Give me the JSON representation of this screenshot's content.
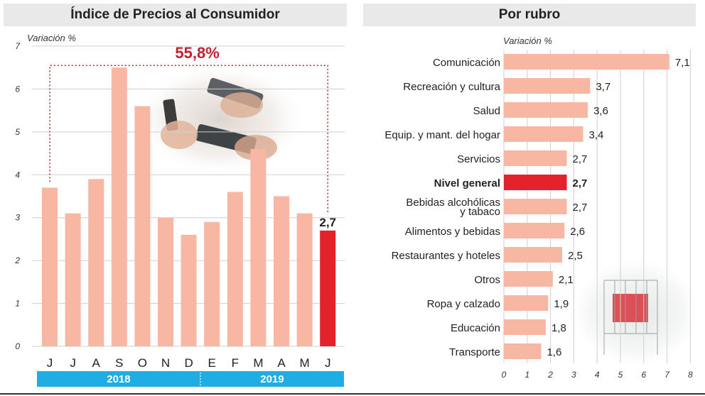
{
  "left_panel": {
    "title": "Índice de Precios al Consumidor"
  },
  "right_panel": {
    "title": "Por rubro"
  },
  "colors": {
    "bar": "#f7b7a3",
    "highlight": "#e3222b",
    "year_band": "#1faee3",
    "annotation": "#c0212f",
    "grid": "#cfcfcf"
  },
  "chart_data": [
    {
      "type": "bar",
      "ylabel": "Variación %",
      "ylim": [
        0,
        7
      ],
      "yticks": [
        0,
        1,
        2,
        3,
        4,
        5,
        6,
        7
      ],
      "categories": [
        "J",
        "J",
        "A",
        "S",
        "O",
        "N",
        "D",
        "E",
        "F",
        "M",
        "A",
        "M",
        "J"
      ],
      "values": [
        3.7,
        3.1,
        3.9,
        6.5,
        5.6,
        3.0,
        2.6,
        2.9,
        3.6,
        4.6,
        3.5,
        3.1,
        2.7
      ],
      "highlight_index": 12,
      "value_labels": [
        {
          "index": 12,
          "text": "2,7"
        }
      ],
      "annotation": {
        "text": "55,8%",
        "from_index": 0,
        "to_index": 12
      },
      "year_bands": [
        {
          "label": "2018",
          "from_index": 0,
          "to_index": 6
        },
        {
          "label": "2019",
          "from_index": 7,
          "to_index": 12
        }
      ],
      "grid": true
    },
    {
      "type": "bar",
      "orientation": "horizontal",
      "xlabel": "Variación %",
      "xlim": [
        0,
        8
      ],
      "xticks": [
        0,
        1,
        2,
        3,
        4,
        5,
        6,
        7,
        8
      ],
      "categories": [
        "Comunicación",
        "Recreación y cultura",
        "Salud",
        "Equip. y mant. del hogar",
        "Servicios",
        "Nivel general",
        "Bebidas alcohólicas y tabaco",
        "Alimentos y bebidas",
        "Restaurantes y hoteles",
        "Otros",
        "Ropa y calzado",
        "Educación",
        "Transporte"
      ],
      "values": [
        7.1,
        3.7,
        3.6,
        3.4,
        2.7,
        2.7,
        2.7,
        2.6,
        2.5,
        2.1,
        1.9,
        1.8,
        1.6
      ],
      "value_labels": [
        "7,1",
        "3,7",
        "3,6",
        "3,4",
        "2,7",
        "2,7",
        "2,7",
        "2,6",
        "2,5",
        "2,1",
        "1,9",
        "1,8",
        "1,6"
      ],
      "highlight_index": 5,
      "grid": true
    }
  ]
}
